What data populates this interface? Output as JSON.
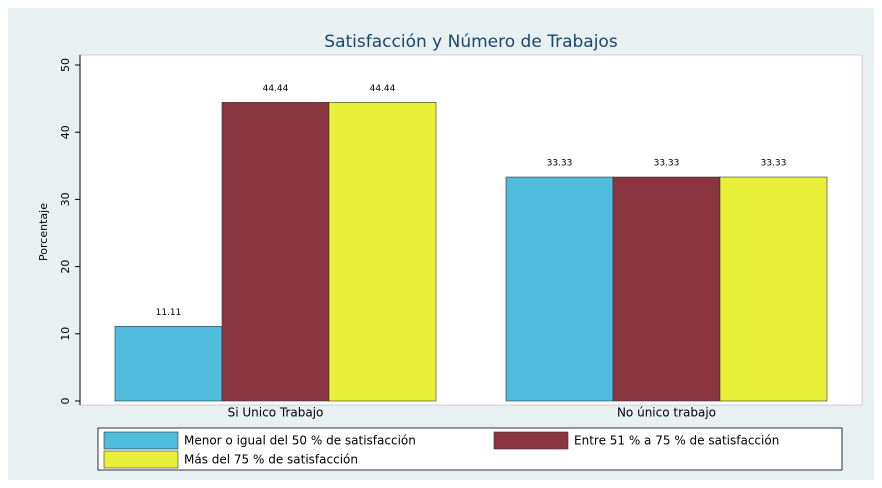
{
  "chart_data": {
    "type": "bar",
    "title": "Satisfacción y Número de Trabajos",
    "y_label": "Porcentaje",
    "categories": [
      "Si Unico Trabajo",
      "No único trabajo"
    ],
    "series": [
      {
        "name": "Menor o igual del 50 % de satisfacción",
        "color": "#4fbcdd",
        "values": [
          11.11,
          33.33
        ]
      },
      {
        "name": "Entre 51 % a 75 % de satisfacción",
        "color": "#8b3540",
        "values": [
          44.44,
          33.33
        ]
      },
      {
        "name": "Más del 75 % de satisfacción",
        "color": "#e8f03a",
        "values": [
          44.44,
          33.33
        ]
      }
    ],
    "ylim": [
      0,
      50
    ],
    "yticks": [
      0,
      10,
      20,
      30,
      40,
      50
    ],
    "grid": false,
    "legend": "bottom"
  }
}
